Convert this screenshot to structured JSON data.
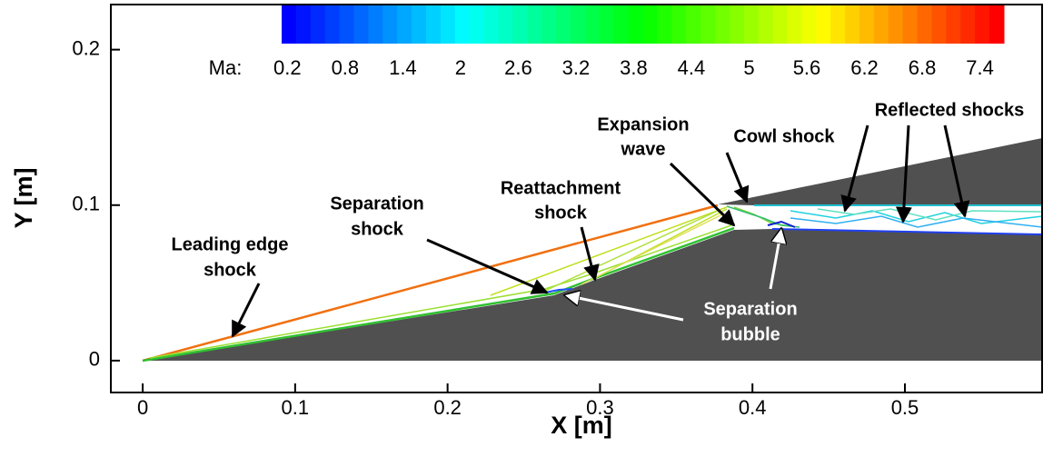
{
  "chart_data": {
    "type": "contour",
    "x_label": "X [m]",
    "y_label": "Y [m]",
    "xlim": [
      -0.0209,
      0.59
    ],
    "ylim": [
      -0.0205,
      0.229
    ],
    "xticks": [
      0,
      0.1,
      0.2,
      0.3,
      0.4,
      0.5
    ],
    "yticks": [
      0,
      0.1,
      0.2
    ],
    "colorbar": {
      "label": "Ma:",
      "lim": [
        0.14,
        7.65
      ],
      "ticks": [
        0.2,
        0.8,
        1.4,
        2,
        2.6,
        3.2,
        3.8,
        4.4,
        5,
        5.6,
        6.2,
        6.8,
        7.4
      ]
    },
    "annotations": [
      {
        "lines": [
          "Leading edge",
          "shock"
        ]
      },
      {
        "lines": [
          "Separation",
          "shock"
        ]
      },
      {
        "lines": [
          "Reattachment",
          "shock"
        ]
      },
      {
        "lines": [
          "Expansion",
          "wave"
        ]
      },
      {
        "lines": [
          "Cowl shock"
        ]
      },
      {
        "lines": [
          "Reflected shocks"
        ]
      },
      {
        "lines": [
          "Separation",
          "bubble"
        ]
      }
    ]
  }
}
